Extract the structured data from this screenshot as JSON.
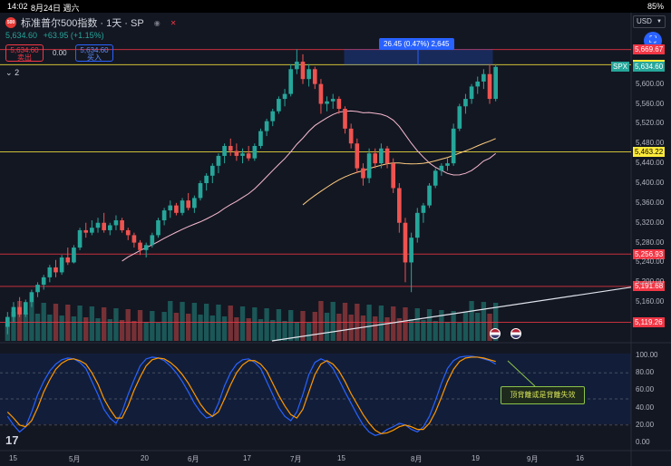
{
  "status": {
    "time": "14:02",
    "date": "8月24日 週六",
    "battery": "85%"
  },
  "header": {
    "title": "标准普尔500指数 · 1天 · SP",
    "logo_text": "500",
    "price": "5,634.60",
    "change": "+63.95 (+1.15%)",
    "sell_price": "5,634.60",
    "sell_label": "卖出",
    "buy_price": "5,634.60",
    "buy_label": "买入",
    "spread": "0.00",
    "indicator_count": "2",
    "currency": "USD"
  },
  "measure_label": "26.45 (0.47%) 2,645",
  "annotation": "顶背離或是背離失效",
  "symbol_tag": "SPX",
  "price_tags": [
    {
      "text": "5,669.67",
      "y": 5669.67,
      "color": "#f23645",
      "line": true
    },
    {
      "text": "5,639.02",
      "y": 5639.02,
      "color": "#ffeb3b",
      "line": true
    },
    {
      "text": "5,634.60",
      "y": 5634.6,
      "color": "#26a69a",
      "line": false
    },
    {
      "text": "5,463.22",
      "y": 5463.22,
      "color": "#ffeb3b",
      "line": true
    },
    {
      "text": "5,256.93",
      "y": 5256.93,
      "color": "#f23645",
      "line": true
    },
    {
      "text": "5,191.68",
      "y": 5191.68,
      "color": "#f23645",
      "line": true
    },
    {
      "text": "5,119.26",
      "y": 5119.26,
      "color": "#f23645",
      "line": true
    }
  ],
  "price_axis": [
    "5,600.00",
    "5,560.00",
    "5,520.00",
    "5,480.00",
    "5,440.00",
    "5,400.00",
    "5,360.00",
    "5,320.00",
    "5,280.00",
    "5,240.00",
    "5,200.00",
    "5,160.00"
  ],
  "osc_axis": [
    "100.00",
    "80.00",
    "60.00",
    "40.00",
    "20.00",
    "0.00"
  ],
  "time_axis": [
    "15",
    "5月",
    "20",
    "6月",
    "17",
    "7月",
    "15",
    "8月",
    "19",
    "9月",
    "16"
  ],
  "icons": {
    "sell_logo": "sp500-logo",
    "fab": "crosshair-icon",
    "eye": "eye-icon",
    "close": "close-icon"
  },
  "chart_data": {
    "type": "candlestick",
    "price_range": [
      5100,
      5700
    ],
    "osc_range": [
      0,
      100
    ],
    "candles": [
      [
        5110,
        5140,
        5095,
        5130
      ],
      [
        5130,
        5160,
        5120,
        5150
      ],
      [
        5150,
        5170,
        5130,
        5135
      ],
      [
        5135,
        5165,
        5130,
        5160
      ],
      [
        5160,
        5185,
        5150,
        5180
      ],
      [
        5180,
        5200,
        5170,
        5195
      ],
      [
        5195,
        5215,
        5185,
        5210
      ],
      [
        5210,
        5235,
        5200,
        5230
      ],
      [
        5230,
        5245,
        5210,
        5220
      ],
      [
        5220,
        5255,
        5215,
        5250
      ],
      [
        5250,
        5270,
        5235,
        5240
      ],
      [
        5240,
        5275,
        5238,
        5270
      ],
      [
        5270,
        5310,
        5265,
        5305
      ],
      [
        5305,
        5320,
        5290,
        5300
      ],
      [
        5300,
        5325,
        5295,
        5310
      ],
      [
        5310,
        5330,
        5300,
        5320
      ],
      [
        5320,
        5340,
        5300,
        5305
      ],
      [
        5305,
        5320,
        5295,
        5315
      ],
      [
        5315,
        5335,
        5305,
        5325
      ],
      [
        5325,
        5330,
        5300,
        5305
      ],
      [
        5305,
        5310,
        5285,
        5295
      ],
      [
        5295,
        5300,
        5270,
        5280
      ],
      [
        5280,
        5285,
        5255,
        5265
      ],
      [
        5265,
        5280,
        5250,
        5275
      ],
      [
        5275,
        5300,
        5270,
        5295
      ],
      [
        5295,
        5330,
        5290,
        5325
      ],
      [
        5325,
        5350,
        5315,
        5345
      ],
      [
        5345,
        5365,
        5330,
        5355
      ],
      [
        5355,
        5360,
        5335,
        5340
      ],
      [
        5340,
        5370,
        5335,
        5365
      ],
      [
        5365,
        5380,
        5345,
        5350
      ],
      [
        5350,
        5375,
        5340,
        5370
      ],
      [
        5370,
        5405,
        5365,
        5400
      ],
      [
        5400,
        5420,
        5385,
        5415
      ],
      [
        5415,
        5440,
        5400,
        5435
      ],
      [
        5435,
        5460,
        5420,
        5455
      ],
      [
        5455,
        5480,
        5440,
        5475
      ],
      [
        5475,
        5490,
        5455,
        5465
      ],
      [
        5465,
        5480,
        5445,
        5455
      ],
      [
        5455,
        5470,
        5440,
        5460
      ],
      [
        5460,
        5475,
        5445,
        5450
      ],
      [
        5450,
        5480,
        5445,
        5475
      ],
      [
        5475,
        5510,
        5470,
        5505
      ],
      [
        5505,
        5530,
        5495,
        5525
      ],
      [
        5525,
        5550,
        5515,
        5545
      ],
      [
        5545,
        5575,
        5540,
        5570
      ],
      [
        5570,
        5590,
        5555,
        5580
      ],
      [
        5580,
        5640,
        5575,
        5630
      ],
      [
        5630,
        5670,
        5620,
        5645
      ],
      [
        5645,
        5660,
        5600,
        5610
      ],
      [
        5610,
        5640,
        5595,
        5630
      ],
      [
        5630,
        5635,
        5590,
        5600
      ],
      [
        5600,
        5610,
        5540,
        5560
      ],
      [
        5560,
        5575,
        5545,
        5565
      ],
      [
        5565,
        5580,
        5550,
        5570
      ],
      [
        5570,
        5575,
        5540,
        5550
      ],
      [
        5550,
        5555,
        5500,
        5510
      ],
      [
        5510,
        5520,
        5470,
        5480
      ],
      [
        5480,
        5490,
        5420,
        5430
      ],
      [
        5430,
        5440,
        5395,
        5410
      ],
      [
        5410,
        5470,
        5400,
        5460
      ],
      [
        5460,
        5470,
        5430,
        5440
      ],
      [
        5440,
        5480,
        5430,
        5470
      ],
      [
        5470,
        5475,
        5430,
        5440
      ],
      [
        5440,
        5450,
        5380,
        5390
      ],
      [
        5390,
        5400,
        5300,
        5320
      ],
      [
        5320,
        5330,
        5200,
        5240
      ],
      [
        5240,
        5300,
        5180,
        5290
      ],
      [
        5290,
        5350,
        5280,
        5340
      ],
      [
        5340,
        5360,
        5320,
        5355
      ],
      [
        5355,
        5400,
        5350,
        5395
      ],
      [
        5395,
        5430,
        5390,
        5425
      ],
      [
        5425,
        5440,
        5415,
        5435
      ],
      [
        5435,
        5450,
        5425,
        5440
      ],
      [
        5440,
        5520,
        5435,
        5510
      ],
      [
        5510,
        5560,
        5505,
        5555
      ],
      [
        5555,
        5580,
        5540,
        5570
      ],
      [
        5570,
        5600,
        5560,
        5595
      ],
      [
        5595,
        5615,
        5580,
        5605
      ],
      [
        5605,
        5630,
        5590,
        5620
      ],
      [
        5620,
        5640,
        5560,
        5570
      ],
      [
        5570,
        5640,
        5565,
        5634.6
      ]
    ],
    "osc_k": [
      30,
      20,
      12,
      18,
      35,
      55,
      70,
      82,
      90,
      95,
      97,
      96,
      92,
      85,
      70,
      55,
      38,
      28,
      22,
      35,
      55,
      72,
      88,
      96,
      98,
      97,
      94,
      88,
      80,
      70,
      58,
      45,
      35,
      28,
      30,
      45,
      65,
      80,
      90,
      95,
      96,
      92,
      85,
      70,
      55,
      40,
      30,
      25,
      35,
      55,
      78,
      92,
      96,
      93,
      85,
      72,
      58,
      45,
      32,
      20,
      12,
      8,
      10,
      15,
      18,
      22,
      20,
      15,
      12,
      18,
      30,
      48,
      68,
      85,
      94,
      98,
      99,
      99,
      98,
      96,
      94,
      90
    ],
    "osc_d": [
      35,
      28,
      20,
      18,
      25,
      40,
      58,
      72,
      84,
      91,
      95,
      96,
      94,
      90,
      80,
      67,
      50,
      38,
      28,
      28,
      42,
      60,
      75,
      88,
      95,
      97,
      96,
      92,
      86,
      78,
      68,
      56,
      44,
      35,
      30,
      35,
      50,
      66,
      80,
      89,
      94,
      94,
      90,
      82,
      68,
      54,
      42,
      32,
      28,
      38,
      58,
      78,
      90,
      94,
      90,
      82,
      70,
      56,
      44,
      32,
      22,
      14,
      10,
      11,
      14,
      18,
      20,
      18,
      15,
      15,
      22,
      35,
      52,
      70,
      84,
      93,
      97,
      98,
      98,
      97,
      95,
      93
    ]
  }
}
